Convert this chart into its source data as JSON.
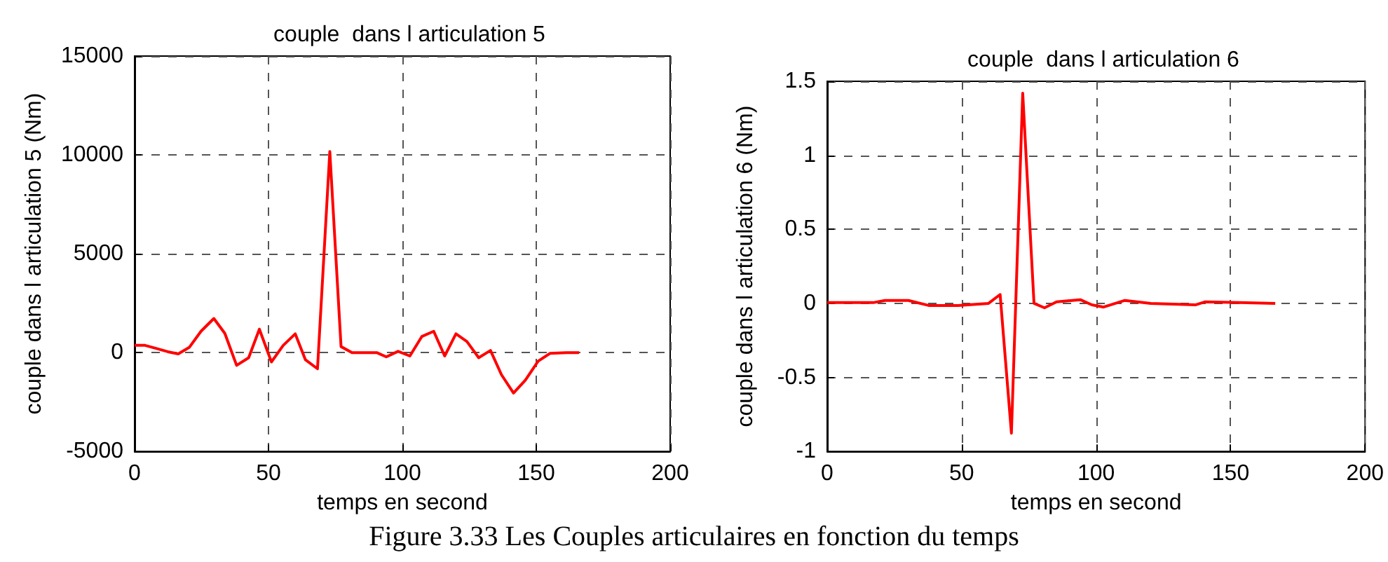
{
  "chart_data": [
    {
      "type": "line",
      "title": "couple  dans l articulation 5",
      "xlabel": "temps en second",
      "ylabel": "couple dans l articulation 5 (Nm)",
      "annotations": [
        "Figure 3.33 Les Couples articulaires en fonction du temps"
      ],
      "series": [
        {
          "color": "#ff0000",
          "x": [
            0,
            3.9,
            8,
            12.4,
            16.3,
            20.4,
            24.8,
            29.6,
            33.7,
            38.1,
            42.6,
            46.6,
            51.1,
            55.5,
            60,
            63.8,
            68.3,
            72.9,
            77.1,
            81.2,
            90.4,
            94,
            98.4,
            102.8,
            107.3,
            111.7,
            115.8,
            120,
            124.1,
            128.5,
            132.9,
            137,
            141.5,
            145.9,
            150.7,
            155.1,
            161.3,
            166
          ],
          "values": [
            366,
            366,
            215,
            43,
            -65,
            259,
            1078,
            1724,
            970,
            -647,
            -259,
            1185,
            -474,
            366,
            948,
            -366,
            -819,
            10172,
            302,
            0,
            0,
            -216,
            65,
            -172,
            819,
            1078,
            -172,
            948,
            560,
            -259,
            108,
            -1121,
            -2047,
            -1400,
            -431,
            -43,
            0,
            0
          ]
        }
      ],
      "xlim": [
        0,
        200
      ],
      "xticks": [
        0,
        50,
        100,
        150,
        200
      ],
      "ylim": [
        -5000,
        15000
      ],
      "yticks": [
        -5000,
        0,
        5000,
        10000,
        15000
      ],
      "grid": true,
      "marker": "none",
      "line_style": "solid"
    },
    {
      "type": "line",
      "title": "couple  dans l articulation 6",
      "xlabel": "temps en second",
      "ylabel": "couple dans l articulation 6 (Nm)",
      "series": [
        {
          "color": "#ff0000",
          "x": [
            0,
            17.1,
            21.5,
            30.2,
            38,
            48.6,
            60,
            64.3,
            68.5,
            72.7,
            76.9,
            80.8,
            85.3,
            94.1,
            98.4,
            102.8,
            110.7,
            120.3,
            136.9,
            140.4,
            166.6
          ],
          "values": [
            0.005,
            0.005,
            0.02,
            0.02,
            -0.015,
            -0.015,
            0,
            0.06,
            -0.877,
            1.42,
            0,
            -0.03,
            0.01,
            0.025,
            -0.01,
            -0.025,
            0.02,
            0,
            -0.01,
            0.01,
            0
          ]
        }
      ],
      "xlim": [
        0,
        200
      ],
      "xticks": [
        0,
        50,
        100,
        150,
        200
      ],
      "ylim": [
        -1,
        1.5
      ],
      "yticks": [
        -1,
        -0.5,
        0,
        0.5,
        1,
        1.5
      ],
      "grid": true,
      "marker": "none",
      "line_style": "solid"
    }
  ]
}
